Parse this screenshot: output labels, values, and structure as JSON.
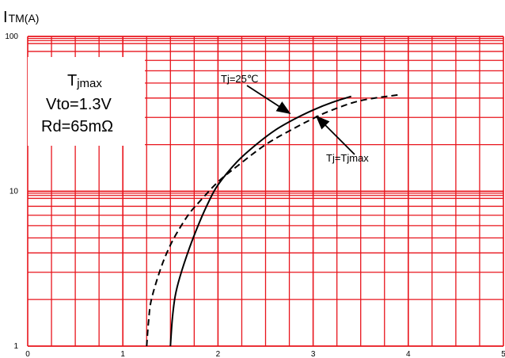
{
  "chart_data": {
    "type": "line",
    "title": "",
    "ylabel_main": "I",
    "ylabel_sub": "TM(A)",
    "xlabel": "",
    "x_scale": "linear",
    "y_scale": "log",
    "xlim": [
      0,
      5
    ],
    "ylim": [
      1,
      100
    ],
    "x_ticks": [
      "0",
      "1",
      "2",
      "3",
      "4",
      "5"
    ],
    "y_ticks": [
      "1",
      "10",
      "100"
    ],
    "grid": true,
    "grid_color": "#e8141c",
    "info_box": {
      "line1_main": "T",
      "line1_sub": "jmax",
      "line2": "Vto=1.3V",
      "line3": "Rd=65mΩ"
    },
    "series": [
      {
        "name": "Tj=25℃",
        "style": "solid",
        "x": [
          1.5,
          1.52,
          1.55,
          1.6,
          1.7,
          1.8,
          1.9,
          2.0,
          2.2,
          2.4,
          2.6,
          2.8,
          3.0,
          3.2,
          3.4
        ],
        "y": [
          1,
          1.5,
          2.1,
          2.8,
          4.3,
          6.2,
          8.5,
          11,
          15.5,
          20,
          24.8,
          29.2,
          33.5,
          37.5,
          41
        ]
      },
      {
        "name": "Tj=Tjmax",
        "style": "dashed",
        "x": [
          1.25,
          1.27,
          1.3,
          1.4,
          1.5,
          1.6,
          1.7,
          1.8,
          2.0,
          2.2,
          2.5,
          2.8,
          3.0,
          3.2,
          3.5,
          3.9
        ],
        "y": [
          1,
          1.45,
          2.0,
          3.2,
          4.5,
          5.8,
          7.2,
          8.5,
          11.5,
          14.5,
          20,
          25.5,
          29.5,
          33.5,
          38.5,
          42
        ]
      }
    ],
    "annotations": [
      {
        "text": "Tj=25℃",
        "target": "series-0",
        "x": 2.75,
        "y": 30
      },
      {
        "text": "Tj=Tjmax",
        "target": "series-1",
        "x": 3.05,
        "y": 33
      }
    ]
  }
}
